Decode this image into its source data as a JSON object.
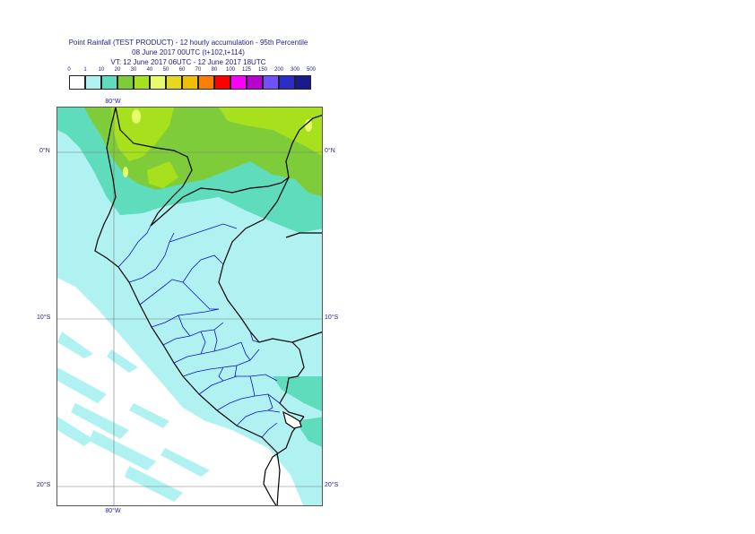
{
  "title": {
    "line1": "Point Rainfall (TEST PRODUCT) - 12 hourly accumulation - 95th Percentile",
    "line2": "08 June 2017 00UTC (t+102,t+114)",
    "line3": "VT: 12 June 2017 06UTC - 12 June 2017 18UTC"
  },
  "legend": {
    "ticks": [
      "0",
      "1",
      "10",
      "20",
      "30",
      "40",
      "50",
      "60",
      "70",
      "80",
      "100",
      "125",
      "150",
      "200",
      "300",
      "500"
    ],
    "colors": [
      "#ffffff",
      "#b0f2f2",
      "#5fdcbc",
      "#7fcc3a",
      "#a7e01c",
      "#e7fb6e",
      "#e6d81a",
      "#f0c000",
      "#ff8000",
      "#ff0000",
      "#ff00ff",
      "#b800d0",
      "#7050ff",
      "#2c2cc8",
      "#1a1a8c"
    ]
  },
  "map": {
    "region": "Peru",
    "lat_labels": [
      {
        "text": "0°N",
        "lat": 0
      },
      {
        "text": "10°S",
        "lat": -10
      },
      {
        "text": "20°S",
        "lat": -20
      }
    ],
    "lon_labels": [
      {
        "text": "80°W",
        "lon": -80
      }
    ],
    "gridline_color": "#7a7a7a",
    "country_border_color": "#000000",
    "region_border_color": "#1010d0"
  }
}
